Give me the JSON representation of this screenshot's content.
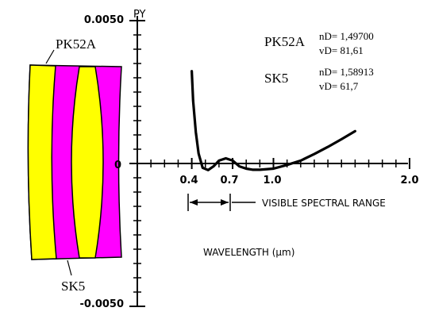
{
  "chart_data": {
    "type": "line",
    "y_axis_name": "PY",
    "y_tick_labels": {
      "top": "0.0050",
      "zero": "0",
      "bottom": "-0.0050"
    },
    "ylim": [
      -0.005,
      0.005
    ],
    "x_tick_labels": [
      "0.4",
      "0.7",
      "1.0",
      "2.0"
    ],
    "x_ticks": [
      0.4,
      0.7,
      1.0,
      2.0
    ],
    "x_minor_ticks": [
      0.1,
      0.2,
      0.3,
      0.5,
      0.6,
      0.8,
      0.9,
      1.1,
      1.2,
      1.3,
      1.4,
      1.5,
      1.6,
      1.7,
      1.8,
      1.9
    ],
    "xlim": [
      0.0,
      2.0
    ],
    "y_minor_ticks": [
      -0.0045,
      -0.004,
      -0.0035,
      -0.003,
      -0.0025,
      -0.002,
      -0.0015,
      -0.001,
      -0.0005,
      0.0005,
      0.001,
      0.0015,
      0.002,
      0.0025,
      0.003,
      0.0035,
      0.004,
      0.0045
    ],
    "xlabel": "WAVELENGTH (μm)",
    "series": [
      {
        "x": [
          0.4,
          0.41,
          0.43,
          0.45,
          0.48,
          0.52,
          0.56,
          0.6,
          0.65,
          0.7,
          0.75,
          0.8,
          0.85,
          0.9,
          1.0,
          1.1,
          1.2,
          1.3,
          1.4,
          1.5,
          1.6
        ],
        "y": [
          0.00323,
          0.0022,
          0.0011,
          0.00035,
          -0.00015,
          -0.00023,
          -0.0001,
          0.0001,
          0.00018,
          0.0001,
          -0.0001,
          -0.00018,
          -0.00022,
          -0.00022,
          -0.00018,
          -5e-05,
          0.0001,
          0.00033,
          0.00058,
          0.00085,
          0.00113
        ]
      }
    ],
    "annotations": {
      "visible_range_label": "VISIBLE SPECTRAL RANGE",
      "visible_range": [
        0.4,
        0.7
      ]
    }
  },
  "glasses": [
    {
      "name": "PK52A",
      "nd": "nD= 1,49700",
      "vd": "vD= 81,61"
    },
    {
      "name": "SK5",
      "nd": "nD= 1,58913",
      "vd": "vD= 61,7"
    }
  ],
  "lens_diagram": {
    "top_label": "PK52A",
    "bottom_label": "SK5",
    "colors": {
      "crown": "#ffff00",
      "flint": "#ff00ff",
      "outline": "#000000"
    }
  }
}
